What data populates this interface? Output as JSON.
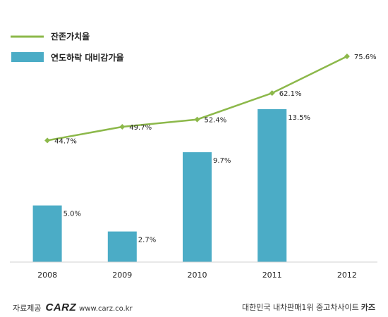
{
  "chart_data": {
    "type": "bar",
    "categories": [
      "2008",
      "2009",
      "2010",
      "2011",
      "2012"
    ],
    "bar_series": {
      "name": "연도하락 대비감가율",
      "values": [
        5.0,
        2.7,
        9.7,
        13.5,
        null
      ],
      "labels": [
        "5.0%",
        "2.7%",
        "9.7%",
        "13.5%",
        null
      ],
      "color": "#4BACC6"
    },
    "line_series": {
      "name": "잔존가치율",
      "values": [
        44.7,
        49.7,
        52.4,
        62.1,
        75.6
      ],
      "labels": [
        "44.7%",
        "49.7%",
        "52.4%",
        "62.1%",
        "75.6%"
      ],
      "color": "#8CB84A"
    },
    "bar_ylim": [
      0,
      15
    ],
    "line_ylim": [
      0,
      90
    ],
    "grid": false,
    "legend_position": "top-left"
  },
  "footer": {
    "source_label": "자료제공",
    "logo_text": "CARZ",
    "url": "www.carz.co.kr",
    "slogan": "대한민국 내차판매1위 중고차사이트",
    "brand": "카즈"
  }
}
